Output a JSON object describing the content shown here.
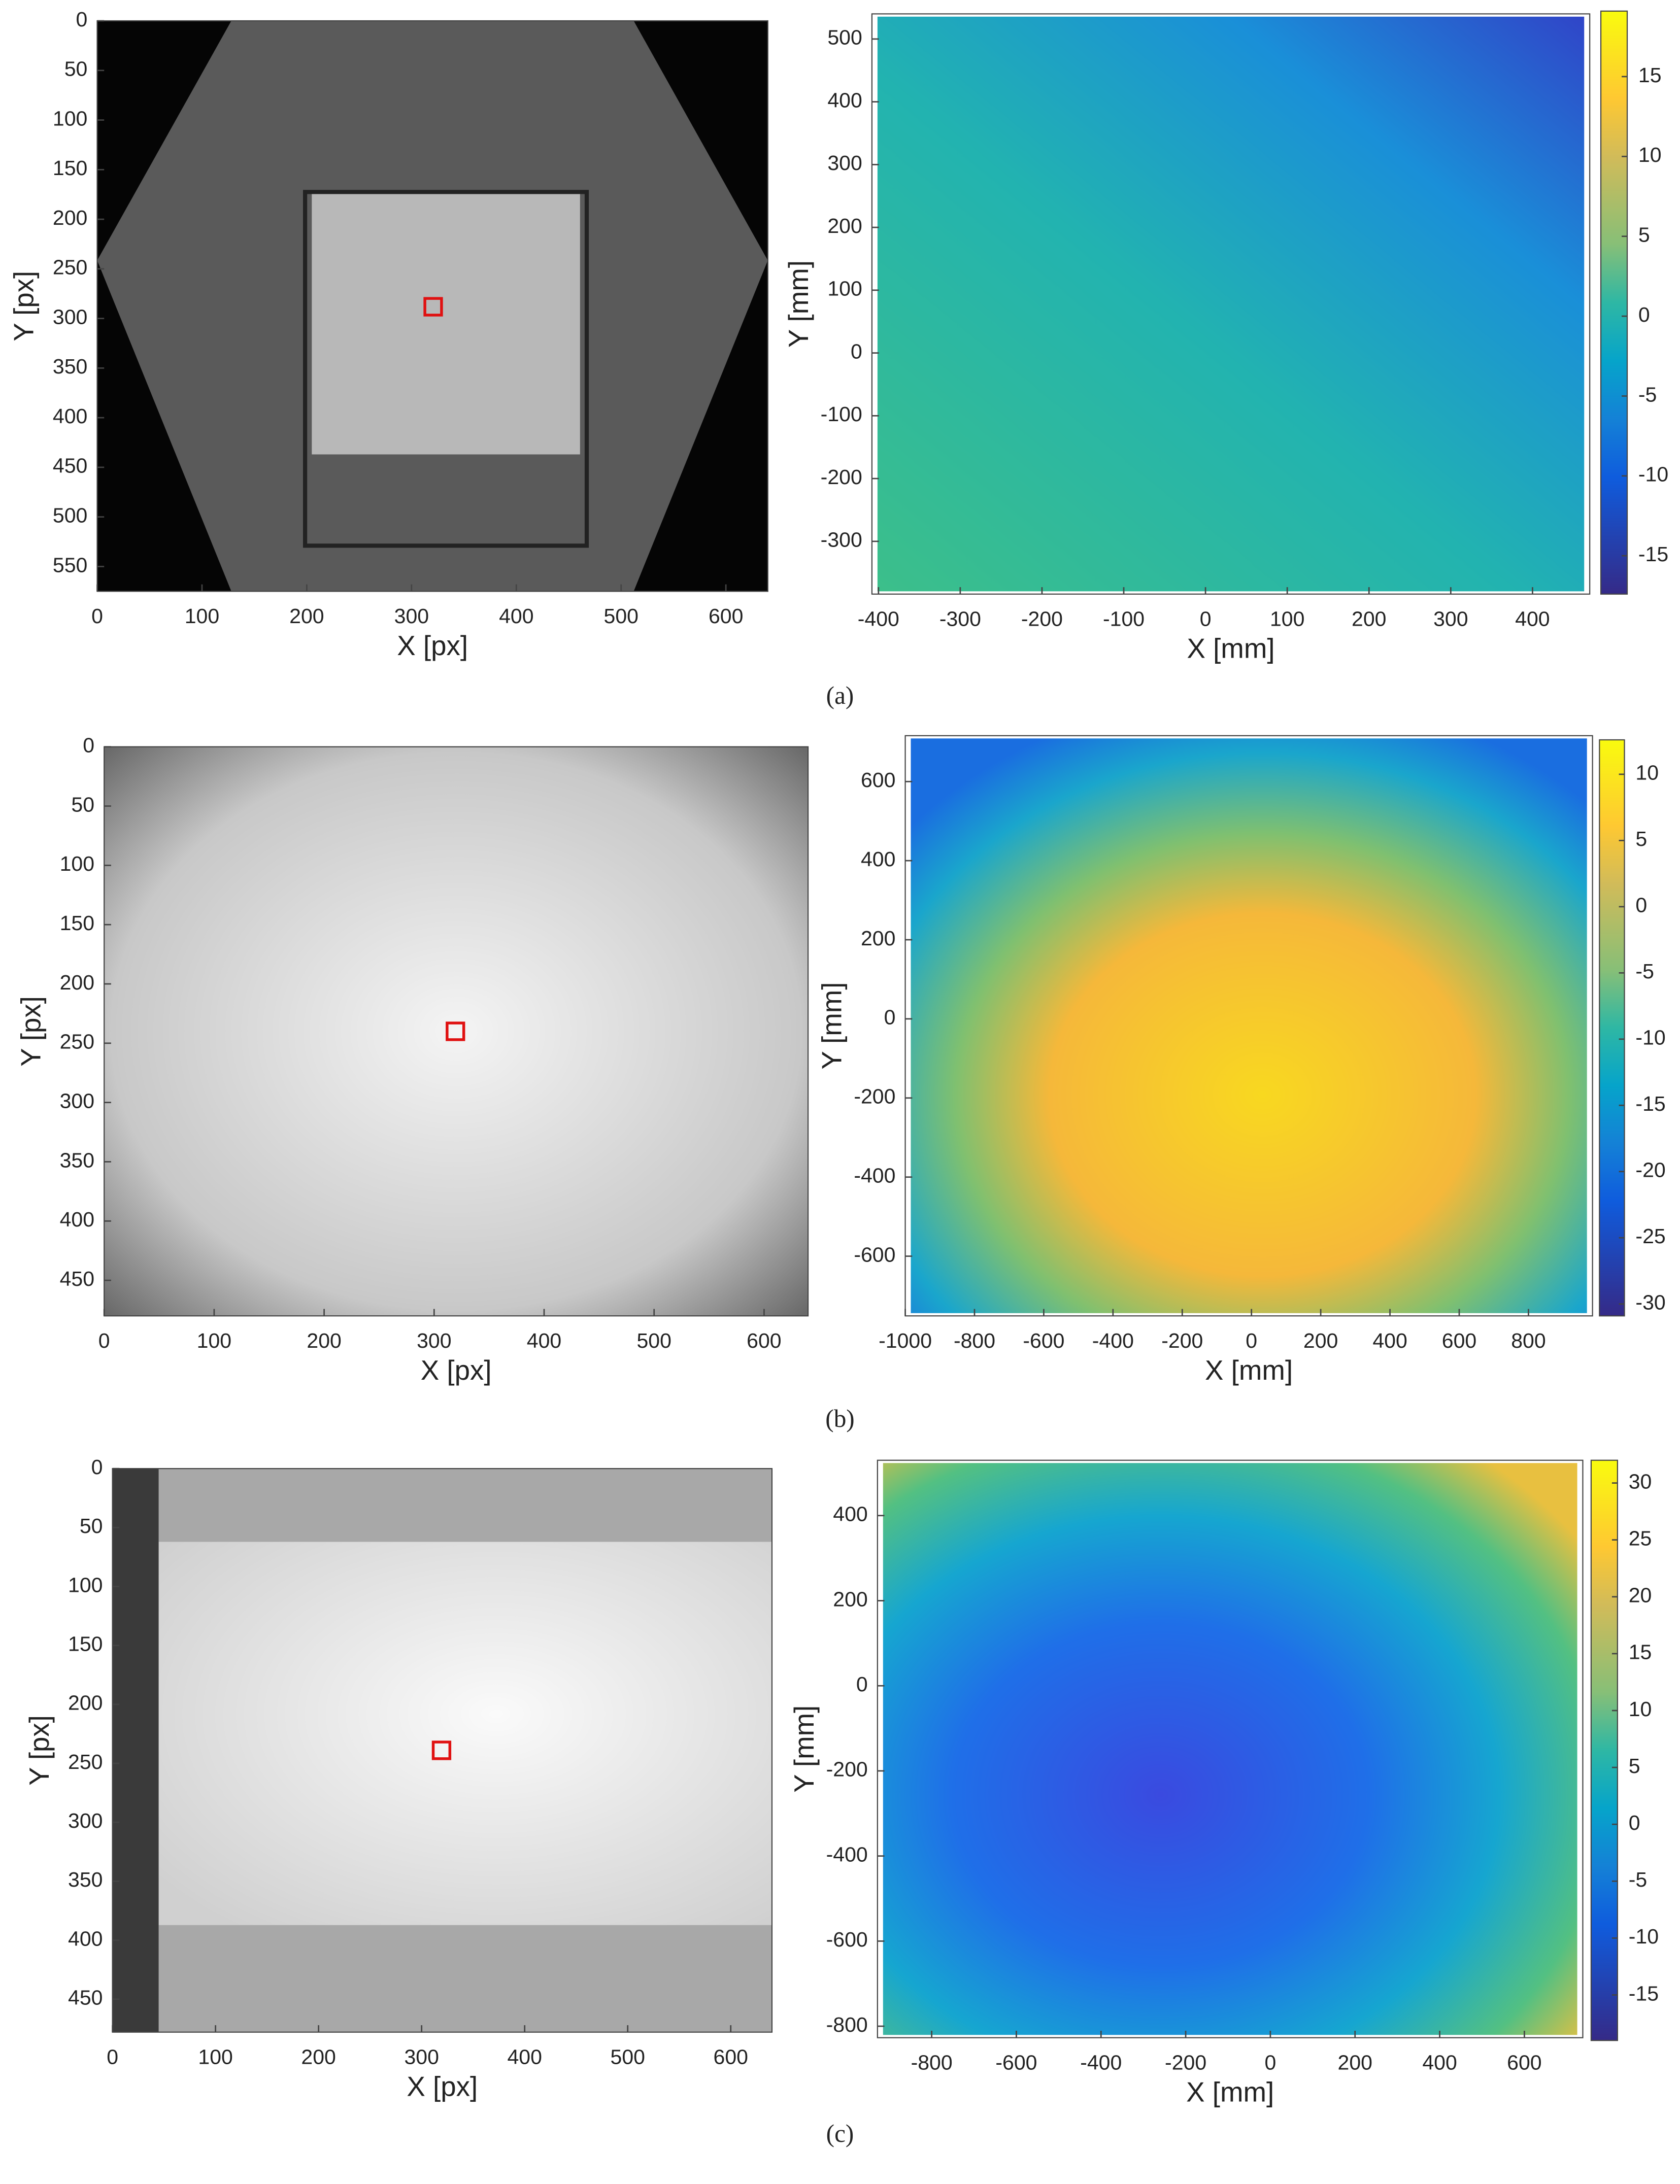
{
  "figure": {
    "panels": [
      {
        "caption": "(a)",
        "image": {
          "xlabel": "X [px]",
          "ylabel": "Y [px]",
          "xlim": [
            0,
            640
          ],
          "ylim": [
            0,
            575
          ],
          "xticks": [
            0,
            100,
            200,
            300,
            400,
            500,
            600
          ],
          "yticks": [
            0,
            50,
            100,
            150,
            200,
            250,
            300,
            350,
            400,
            450,
            500,
            550
          ]
        },
        "map": {
          "xlabel": "X [mm]",
          "ylabel": "Y [mm]",
          "xlim": [
            -408,
            470
          ],
          "ylim": [
            -384,
            540
          ],
          "xticks": [
            -400,
            -300,
            -200,
            -100,
            0,
            100,
            200,
            300,
            400
          ],
          "yticks": [
            -300,
            -200,
            -100,
            0,
            100,
            200,
            300,
            400,
            500
          ],
          "colorbar_lim": [
            -17.4,
            19.1
          ],
          "colorbar_ticks": [
            -15,
            -10,
            -5,
            0,
            5,
            10,
            15
          ]
        }
      },
      {
        "caption": "(b)",
        "image": {
          "xlabel": "X [px]",
          "ylabel": "Y [px]",
          "xlim": [
            0,
            640
          ],
          "ylim": [
            0,
            480
          ],
          "xticks": [
            0,
            100,
            200,
            300,
            400,
            500,
            600
          ],
          "yticks": [
            0,
            50,
            100,
            150,
            200,
            250,
            300,
            350,
            400,
            450
          ]
        },
        "map": {
          "xlabel": "X [mm]",
          "ylabel": "Y [mm]",
          "xlim": [
            -1000,
            985
          ],
          "ylim": [
            -751,
            716
          ],
          "xticks": [
            -1000,
            -800,
            -600,
            -400,
            -200,
            0,
            200,
            400,
            600,
            800
          ],
          "yticks": [
            -600,
            -400,
            -200,
            0,
            200,
            400,
            600
          ],
          "colorbar_lim": [
            -30.9,
            12.6
          ],
          "colorbar_ticks": [
            -30,
            -25,
            -20,
            -15,
            -10,
            -5,
            0,
            5,
            10
          ]
        }
      },
      {
        "caption": "(c)",
        "image": {
          "xlabel": "X [px]",
          "ylabel": "Y [px]",
          "xlim": [
            0,
            640
          ],
          "ylim": [
            0,
            478
          ],
          "xticks": [
            0,
            100,
            200,
            300,
            400,
            500,
            600
          ],
          "yticks": [
            0,
            50,
            100,
            150,
            200,
            250,
            300,
            350,
            400,
            450
          ]
        },
        "map": {
          "xlabel": "X [mm]",
          "ylabel": "Y [mm]",
          "xlim": [
            -928,
            738
          ],
          "ylim": [
            -827,
            530
          ],
          "xticks": [
            -800,
            -600,
            -400,
            -200,
            0,
            200,
            400,
            600
          ],
          "yticks": [
            -800,
            -600,
            -400,
            -200,
            0,
            200,
            400
          ],
          "colorbar_lim": [
            -19,
            32
          ],
          "colorbar_ticks": [
            -15,
            -10,
            -5,
            0,
            5,
            10,
            15,
            20,
            25,
            30
          ]
        }
      }
    ]
  }
}
